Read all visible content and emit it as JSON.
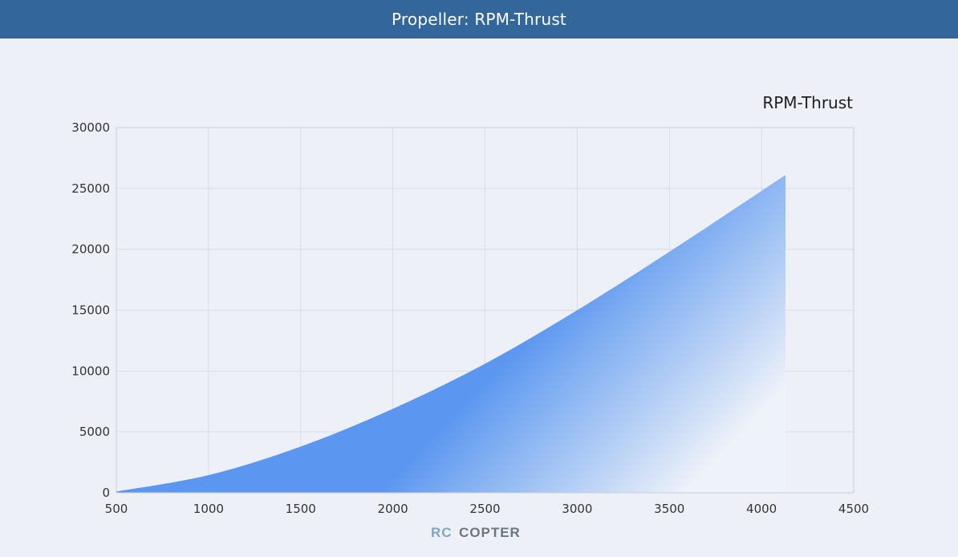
{
  "header": {
    "title": "Propeller: RPM-Thrust"
  },
  "chart_data": {
    "type": "area",
    "title": "RPM-Thrust",
    "xlabel": "",
    "ylabel": "",
    "xlim": [
      500,
      4500
    ],
    "ylim": [
      0,
      30000
    ],
    "x_ticks": [
      "500",
      "1000",
      "1500",
      "2000",
      "2500",
      "3000",
      "3500",
      "4000",
      "4500"
    ],
    "y_ticks": [
      "0",
      "5000",
      "10000",
      "15000",
      "20000",
      "25000",
      "30000"
    ],
    "grid": true,
    "series": [
      {
        "x": [
          500,
          1000,
          1500,
          2000,
          2500,
          3000,
          3500,
          4000,
          4130
        ],
        "y": [
          100,
          1450,
          3800,
          6900,
          10600,
          15000,
          19800,
          24800,
          26100
        ]
      }
    ],
    "colors": {
      "fill_top": "#5b97f0",
      "fill_bottom": "#eef2f9"
    }
  },
  "watermark": {
    "part1": "RC",
    "part2": "COPTER"
  }
}
